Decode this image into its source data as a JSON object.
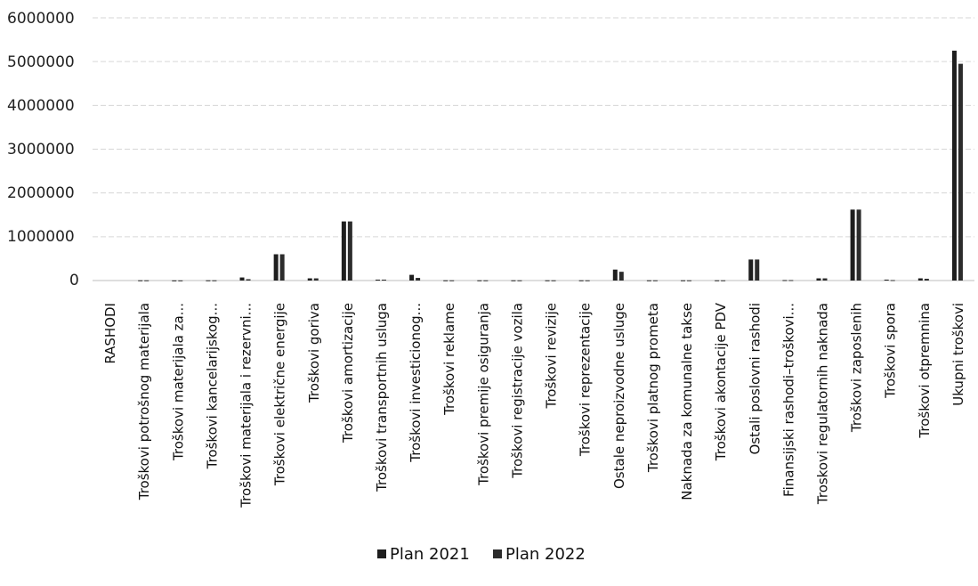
{
  "chart_data": {
    "type": "bar",
    "title": "",
    "xlabel": "",
    "ylabel": "",
    "ylim": [
      0,
      6000000
    ],
    "yticks": [
      "6000000",
      "5000000",
      "4000000",
      "3000000",
      "2000000",
      "1000000",
      "0"
    ],
    "grid": true,
    "legend_position": "bottom",
    "categories": [
      "RASHODI",
      "Troškovi potrošnog materijala",
      "Troškovi materijala za...",
      "Troškovi kancelarijskog...",
      "Troškovi materijala i rezervni...",
      "Troškovi električne energije",
      "Troškovi goriva",
      "Troškovi amortizacije",
      "Troškovi transportnih usluga",
      "Troškovi investicionog...",
      "Troškovi reklame",
      "Troškovi premije osiguranja",
      "Troškovi registracije vozila",
      "Troškovi revizije",
      "Troškovi reprezentacije",
      "Ostale neproizvodne usluge",
      "Troškovi platnog prometa",
      "Naknada  za komunalne takse",
      "Troškovi akontacije PDV",
      "Ostali poslovni rashodi",
      "Finansijski rashodi–troškovi...",
      "Troskovi regulatornih naknada",
      "Troškovi zaposlenih",
      "Troškovi spora",
      "Troškovi otpremnina",
      "Ukupni troškovi"
    ],
    "series": [
      {
        "name": "Plan 2021",
        "color": "#1e1e1e",
        "values": [
          0,
          5000,
          3000,
          5000,
          70000,
          600000,
          50000,
          1350000,
          20000,
          130000,
          5000,
          5000,
          5000,
          5000,
          5000,
          250000,
          5000,
          5000,
          5000,
          480000,
          10000,
          50000,
          1620000,
          20000,
          50000,
          5250000
        ]
      },
      {
        "name": "Plan 2022",
        "color": "#2c2c2c",
        "values": [
          0,
          5000,
          3000,
          5000,
          30000,
          600000,
          50000,
          1350000,
          20000,
          60000,
          5000,
          5000,
          5000,
          5000,
          5000,
          200000,
          5000,
          5000,
          5000,
          480000,
          10000,
          50000,
          1620000,
          10000,
          40000,
          4950000
        ]
      }
    ]
  }
}
